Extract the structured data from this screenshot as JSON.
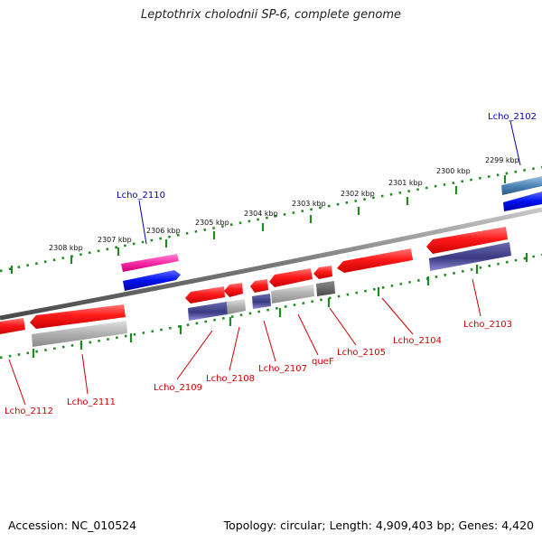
{
  "title": "Leptothrix cholodnii SP-6, complete genome",
  "footer": {
    "accession": "Accession: NC_010524",
    "summary": "Topology: circular; Length: 4,909,403 bp; Genes: 4,420"
  },
  "scale_ticks": [
    "2299 kbp",
    "2300 kbp",
    "2301 kbp",
    "2302 kbp",
    "2303 kbp",
    "2304 kbp",
    "2305 kbp",
    "2306 kbp",
    "2307 kbp",
    "2308 kbp"
  ],
  "gene_labels": {
    "forward": [
      "Lcho_2102",
      "Lcho_2110"
    ],
    "reverse": [
      "Lcho_2103",
      "Lcho_2104",
      "Lcho_2105",
      "queF",
      "Lcho_2107",
      "Lcho_2108",
      "Lcho_2109",
      "Lcho_2111",
      "Lcho_2112"
    ]
  },
  "colors": {
    "backbone": "#8a8a8a",
    "tick_marks": "#1f8a1f",
    "cds_reverse": "#ff1a1a",
    "cds_forward_magenta": "#ff2aa8",
    "cds_forward_blue": "#0010ee",
    "cds_forward_steel": "#4f86b8",
    "cog_navy": "#3a3a82",
    "cog_grey": "#a8a8a8",
    "label_forward": "#0000aa",
    "label_reverse": "#cc0000"
  }
}
